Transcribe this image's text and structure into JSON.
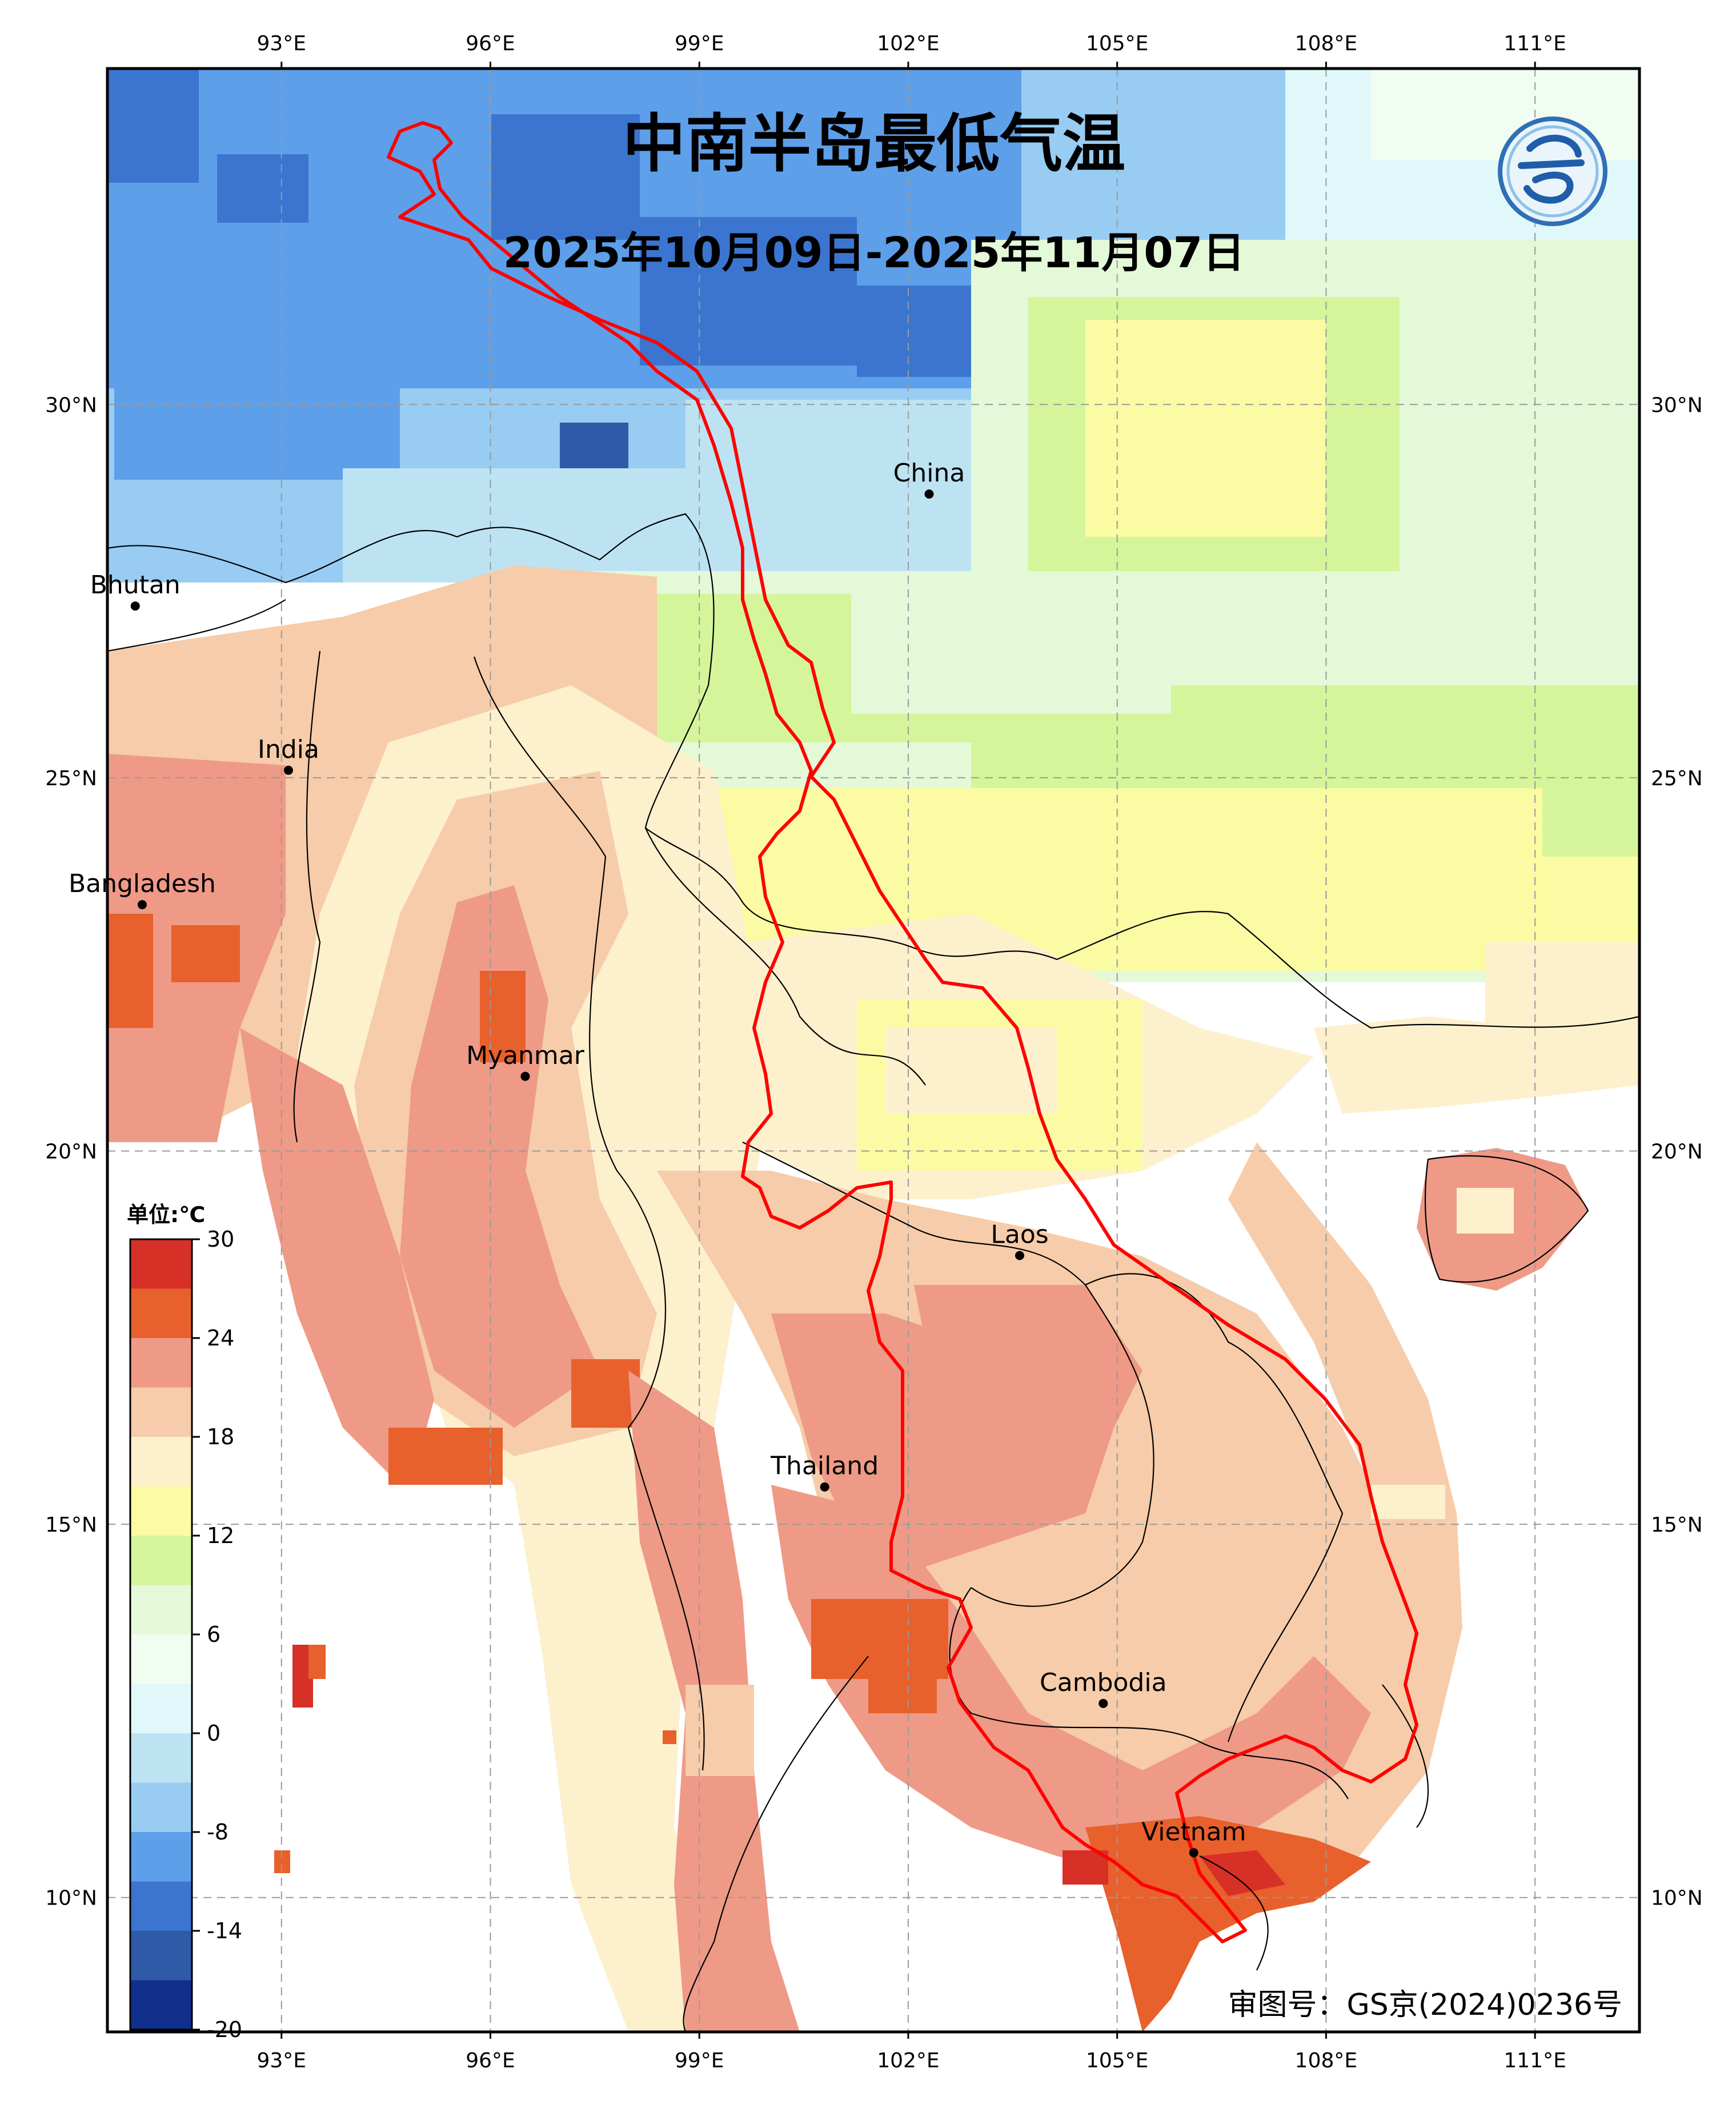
{
  "map": {
    "title": "中南半岛最低气温",
    "subtitle": "2025年10月09日-2025年11月07日",
    "approval": "审图号：GS京(2024)0236号",
    "extent": {
      "lon_min": 90.5,
      "lon_max": 112.5,
      "lat_min": 8.2,
      "lat_max": 34.5
    },
    "lon_ticks": [
      "93°E",
      "96°E",
      "99°E",
      "102°E",
      "105°E",
      "108°E",
      "111°E"
    ],
    "lon_values": [
      93,
      96,
      99,
      102,
      105,
      108,
      111
    ],
    "lat_ticks": [
      "30°N",
      "25°N",
      "20°N",
      "15°N",
      "10°N"
    ],
    "lat_values": [
      30,
      25,
      20,
      15,
      10
    ],
    "places": [
      {
        "name": "China",
        "lon": 102.3,
        "lat": 28.8
      },
      {
        "name": "Bhutan",
        "lon": 90.9,
        "lat": 27.3
      },
      {
        "name": "India",
        "lon": 93.1,
        "lat": 25.1
      },
      {
        "name": "Bangladesh",
        "lon": 91.0,
        "lat": 23.3
      },
      {
        "name": "Myanmar",
        "lon": 96.5,
        "lat": 21.0
      },
      {
        "name": "Laos",
        "lon": 103.6,
        "lat": 18.6
      },
      {
        "name": "Thailand",
        "lon": 100.8,
        "lat": 15.5
      },
      {
        "name": "Cambodia",
        "lon": 104.8,
        "lat": 12.6
      },
      {
        "name": "Vietnam",
        "lon": 106.1,
        "lat": 10.6
      }
    ],
    "basin_outline_color": "#ff0000"
  },
  "colorbar": {
    "unit_label": "单位:℃",
    "tick_labels": [
      "30",
      "24",
      "18",
      "12",
      "6",
      "0",
      "-8",
      "-14",
      "-20"
    ],
    "colors": [
      "#d73027",
      "#e8602c",
      "#ee9a87",
      "#f6ccaa",
      "#fdf0cd",
      "#fbfba4",
      "#d5f59b",
      "#e4f9d8",
      "#f2fdf2",
      "#e0f8fa",
      "#bde3f3",
      "#98ccf2",
      "#5e9fea",
      "#3c75cf",
      "#2f5aa8",
      "#10308c"
    ]
  },
  "palette": {
    "deep_cold": "#3c75cf",
    "cold": "#5e9fea",
    "cool": "#98ccf2",
    "pale_blue": "#bde3f3",
    "ice": "#e0f8fa",
    "mint": "#e4f9d8",
    "green": "#d5f59b",
    "yellow": "#fbfba4",
    "cream": "#fdf0cd",
    "peach": "#f6ccaa",
    "salmon": "#ee9a87",
    "orange": "#e8602c",
    "red": "#d73027"
  }
}
